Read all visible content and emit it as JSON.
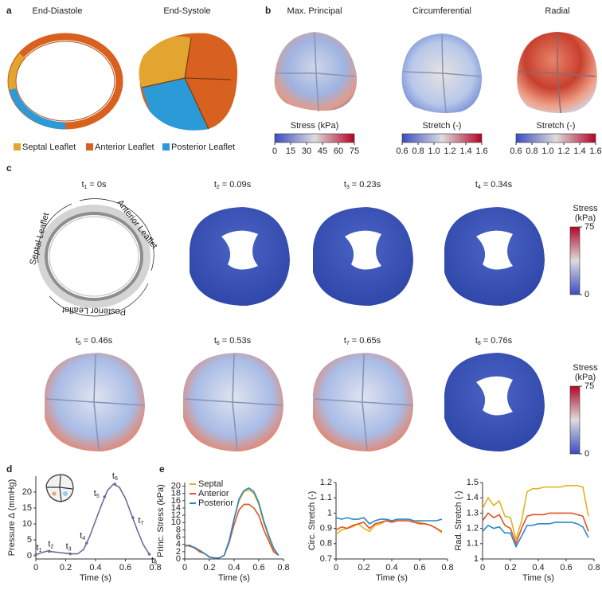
{
  "figure": {
    "panel_a": {
      "letter": "a",
      "titles": [
        "End-Diastole",
        "End-Systole"
      ],
      "legend": [
        {
          "name": "Septal Leaflet",
          "color": "#e2a630"
        },
        {
          "name": "Anterior Leaflet",
          "color": "#d9611f"
        },
        {
          "name": "Posterior Leaflet",
          "color": "#2b9ad6"
        }
      ]
    },
    "panel_b": {
      "letter": "b",
      "titles": [
        "Max. Principal",
        "Circumferential",
        "Radial"
      ],
      "colorbars": [
        {
          "label": "Stress (kPa)",
          "lim": [
            0,
            75
          ],
          "ticks": [
            0,
            15,
            30,
            45,
            60,
            75
          ]
        },
        {
          "label": "Stretch (-)",
          "lim": [
            0.6,
            1.6
          ],
          "ticks": [
            0.6,
            0.8,
            {
              "value": 1,
              "label": "1.0"
            },
            1.2,
            1.4,
            1.6
          ]
        },
        {
          "label": "Stretch (-)",
          "lim": [
            0.6,
            1.6
          ],
          "ticks": [
            0.6,
            0.8,
            {
              "value": 1,
              "label": "1.0"
            },
            1.2,
            1.4,
            1.6
          ]
        }
      ]
    },
    "panel_c": {
      "letter": "c",
      "times": [
        {
          "symbol": "t",
          "sub": "1",
          "text": "= 0s"
        },
        {
          "symbol": "t",
          "sub": "2",
          "text": "= 0.09s"
        },
        {
          "symbol": "t",
          "sub": "3",
          "text": "= 0.23s"
        },
        {
          "symbol": "t",
          "sub": "4",
          "text": "= 0.34s"
        },
        {
          "symbol": "t",
          "sub": "5",
          "text": "= 0.46s"
        },
        {
          "symbol": "t",
          "sub": "6",
          "text": "= 0.53s"
        },
        {
          "symbol": "t",
          "sub": "7",
          "text": "= 0.65s"
        },
        {
          "symbol": "t",
          "sub": "8",
          "text": "= 0.76s"
        }
      ],
      "diagram_labels": [
        "Septal Leaflet",
        "Anterior Leaflet",
        "Posterior Leaflet"
      ],
      "colorbar": {
        "label": [
          "Stress",
          "(kPa)"
        ],
        "lim": [
          0,
          75
        ],
        "ticks": [
          0,
          75
        ]
      }
    },
    "panel_d_letter": "d",
    "panel_e_letter": "e"
  },
  "chart_data": [
    {
      "type": "line",
      "y_label": "Pressure Δ (mmHg)",
      "x_label": "Time (s)",
      "x": [
        0,
        0.04,
        0.08,
        0.12,
        0.16,
        0.2,
        0.24,
        0.28,
        0.32,
        0.36,
        0.4,
        0.44,
        0.48,
        0.52,
        0.56,
        0.6,
        0.64,
        0.68,
        0.72,
        0.76
      ],
      "series": [
        {
          "color": "#6b6b9e",
          "values": [
            0.3,
            1,
            1.5,
            1.2,
            1,
            0.8,
            0.6,
            0.6,
            2,
            6,
            11,
            16,
            20.5,
            22.5,
            21.5,
            18,
            13,
            8,
            3.5,
            0.5
          ]
        }
      ],
      "annotations": [
        {
          "symbol": "t",
          "sub": "1",
          "x": 0,
          "y": 0.3
        },
        {
          "symbol": "t",
          "sub": "2",
          "x": 0.09,
          "y": 1.4
        },
        {
          "symbol": "t",
          "sub": "3",
          "x": 0.23,
          "y": 0.6
        },
        {
          "symbol": "t",
          "sub": "4",
          "x": 0.34,
          "y": 4
        },
        {
          "symbol": "t",
          "sub": "5",
          "x": 0.46,
          "y": 18.5
        },
        {
          "symbol": "t",
          "sub": "6",
          "x": 0.53,
          "y": 22.5
        },
        {
          "symbol": "t",
          "sub": "7",
          "x": 0.65,
          "y": 12
        },
        {
          "symbol": "t",
          "sub": "8",
          "x": 0.76,
          "y": 0.5
        }
      ],
      "xlim": [
        0,
        0.8
      ],
      "xticks": [
        0,
        0.2,
        0.4,
        0.6,
        0.8
      ],
      "ylim": [
        -1,
        25
      ],
      "yticks": [
        0,
        5,
        10,
        15,
        20
      ]
    },
    {
      "type": "line",
      "y_label": "Princ. Stress (kPa)",
      "x_label": "Time (s)",
      "x": [
        0,
        0.04,
        0.08,
        0.12,
        0.16,
        0.2,
        0.24,
        0.28,
        0.32,
        0.36,
        0.4,
        0.44,
        0.48,
        0.52,
        0.56,
        0.6,
        0.64,
        0.68,
        0.72,
        0.76
      ],
      "series": [
        {
          "name": "Septal",
          "color": "#e2b21f",
          "values": [
            4,
            3.5,
            3,
            2.5,
            1.5,
            0.5,
            0.3,
            0.3,
            1,
            5,
            11,
            16,
            18.5,
            19,
            18,
            15,
            10,
            6,
            2.5,
            1
          ]
        },
        {
          "name": "Anterior",
          "color": "#e0522b",
          "values": [
            3.5,
            3.8,
            3,
            2,
            1.5,
            0.5,
            0.3,
            0.3,
            1,
            4.5,
            9.5,
            13.5,
            15,
            15,
            14,
            12,
            8,
            5,
            2,
            1
          ]
        },
        {
          "name": "Posterior",
          "color": "#2a88c6",
          "values": [
            3.8,
            3.5,
            3.2,
            2.3,
            1.5,
            0.6,
            0.2,
            0.3,
            1,
            5,
            11,
            16.5,
            18.8,
            19.5,
            18.5,
            15.5,
            10.5,
            6.5,
            3,
            1
          ]
        }
      ],
      "legend": "upper left",
      "xlim": [
        0,
        0.8
      ],
      "xticks": [
        0,
        0.2,
        0.4,
        0.6,
        0.8
      ],
      "ylim": [
        0,
        21
      ],
      "yticks": [
        0,
        2,
        4,
        6,
        8,
        10,
        12,
        14,
        16,
        18,
        20
      ]
    },
    {
      "type": "line",
      "y_label": "Circ. Stretch (-)",
      "x_label": "Time (s)",
      "x": [
        0,
        0.04,
        0.08,
        0.12,
        0.16,
        0.2,
        0.24,
        0.28,
        0.32,
        0.36,
        0.4,
        0.44,
        0.48,
        0.52,
        0.56,
        0.6,
        0.64,
        0.68,
        0.72,
        0.76
      ],
      "series": [
        {
          "color": "#e2b21f",
          "values": [
            0.86,
            0.89,
            0.9,
            0.91,
            0.93,
            0.9,
            0.88,
            0.92,
            0.93,
            0.95,
            0.95,
            0.95,
            0.95,
            0.95,
            0.94,
            0.94,
            0.93,
            0.92,
            0.9,
            0.87
          ]
        },
        {
          "color": "#e0522b",
          "values": [
            0.89,
            0.91,
            0.9,
            0.92,
            0.93,
            0.94,
            0.9,
            0.93,
            0.94,
            0.95,
            0.94,
            0.95,
            0.95,
            0.95,
            0.94,
            0.93,
            0.93,
            0.92,
            0.9,
            0.88
          ]
        },
        {
          "color": "#2a88c6",
          "values": [
            0.97,
            0.96,
            0.97,
            0.96,
            0.96,
            0.97,
            0.93,
            0.95,
            0.96,
            0.96,
            0.95,
            0.96,
            0.96,
            0.96,
            0.95,
            0.95,
            0.95,
            0.95,
            0.95,
            0.96
          ]
        }
      ],
      "xlim": [
        0,
        0.8
      ],
      "xticks": [
        0,
        0.2,
        0.4,
        0.6,
        0.8
      ],
      "ylim": [
        0.7,
        1.2
      ],
      "yticks": [
        0.7,
        0.8,
        0.9,
        1,
        1.1,
        1.2
      ]
    },
    {
      "type": "line",
      "y_label": "Rad. Stretch (-)",
      "x_label": "Time (s)",
      "x": [
        0,
        0.04,
        0.08,
        0.12,
        0.16,
        0.2,
        0.24,
        0.28,
        0.32,
        0.36,
        0.4,
        0.44,
        0.48,
        0.52,
        0.56,
        0.6,
        0.64,
        0.68,
        0.72,
        0.76
      ],
      "series": [
        {
          "color": "#e2b21f",
          "values": [
            1.33,
            1.4,
            1.35,
            1.38,
            1.28,
            1.27,
            1.13,
            1.25,
            1.44,
            1.46,
            1.46,
            1.47,
            1.47,
            1.47,
            1.47,
            1.48,
            1.48,
            1.48,
            1.47,
            1.28
          ]
        },
        {
          "color": "#e0522b",
          "values": [
            1.25,
            1.3,
            1.27,
            1.29,
            1.22,
            1.2,
            1.1,
            1.2,
            1.28,
            1.29,
            1.29,
            1.29,
            1.3,
            1.3,
            1.3,
            1.3,
            1.3,
            1.29,
            1.28,
            1.18
          ]
        },
        {
          "color": "#2a88c6",
          "values": [
            1.18,
            1.22,
            1.2,
            1.21,
            1.17,
            1.17,
            1.08,
            1.15,
            1.22,
            1.22,
            1.23,
            1.23,
            1.23,
            1.24,
            1.24,
            1.24,
            1.24,
            1.23,
            1.21,
            1.14
          ]
        }
      ],
      "xlim": [
        0,
        0.8
      ],
      "xticks": [
        0,
        0.2,
        0.4,
        0.6,
        0.8
      ],
      "ylim": [
        1,
        1.5
      ],
      "yticks": [
        1,
        1.1,
        1.2,
        1.3,
        1.4,
        1.5
      ]
    }
  ]
}
